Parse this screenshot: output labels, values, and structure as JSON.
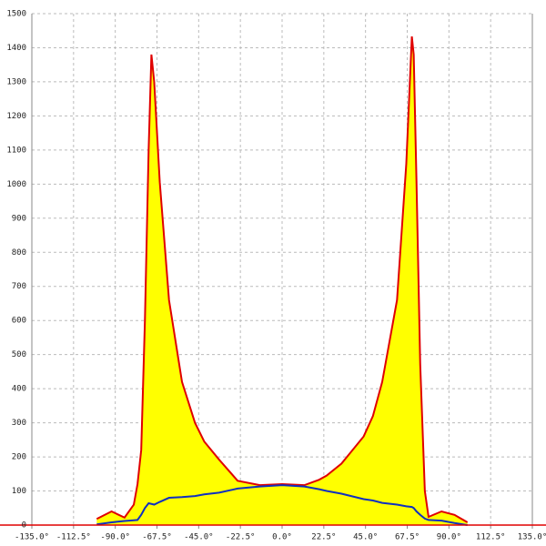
{
  "chart_data": {
    "type": "area",
    "x": [
      -100,
      -92,
      -85,
      -80,
      -78,
      -76,
      -74,
      -72,
      -70.5,
      -69,
      -66,
      -61,
      -54,
      -47,
      -42,
      -34,
      -24,
      -12,
      0,
      12,
      20,
      24,
      32,
      44,
      49,
      54,
      62,
      67,
      70,
      71,
      72.5,
      74.5,
      77,
      79,
      86,
      93,
      100
    ],
    "series": [
      {
        "color": "#e00000",
        "fill": "#ffff00",
        "values": [
          18,
          40,
          22,
          60,
          120,
          220,
          600,
          1100,
          1380,
          1300,
          1006,
          660,
          420,
          300,
          245,
          192,
          130,
          117,
          120,
          117,
          133,
          145,
          180,
          260,
          320,
          420,
          660,
          1060,
          1433,
          1380,
          1006,
          472,
          100,
          24,
          40,
          30,
          8
        ]
      },
      {
        "color": "#1030c0",
        "values": [
          2,
          8,
          12,
          14,
          15,
          30,
          50,
          64,
          62,
          60,
          68,
          80,
          82,
          85,
          90,
          95,
          107,
          113,
          117,
          113,
          105,
          100,
          92,
          76,
          72,
          65,
          60,
          55,
          53,
          50,
          40,
          30,
          19,
          15,
          13,
          6,
          0
        ]
      }
    ],
    "xlim": [
      -135,
      135
    ],
    "xticks": [
      {
        "value": -135,
        "label": "-135.0°"
      },
      {
        "value": -112.5,
        "label": "-112.5°"
      },
      {
        "value": -90,
        "label": "-90.0°"
      },
      {
        "value": -67.5,
        "label": "-67.5°"
      },
      {
        "value": -45,
        "label": "-45.0°"
      },
      {
        "value": -22.5,
        "label": "-22.5°"
      },
      {
        "value": 0,
        "label": "0.0°"
      },
      {
        "value": 22.5,
        "label": "22.5°"
      },
      {
        "value": 45,
        "label": "45.0°"
      },
      {
        "value": 67.5,
        "label": "67.5°"
      },
      {
        "value": 90,
        "label": "90.0°"
      },
      {
        "value": 112.5,
        "label": "112.5°"
      },
      {
        "value": 135,
        "label": "135.0°"
      }
    ],
    "ylim": [
      0,
      1500
    ],
    "yticks": [
      0,
      100,
      200,
      300,
      400,
      500,
      600,
      700,
      800,
      900,
      1000,
      1100,
      1200,
      1300,
      1400,
      1500
    ],
    "grid": true
  }
}
